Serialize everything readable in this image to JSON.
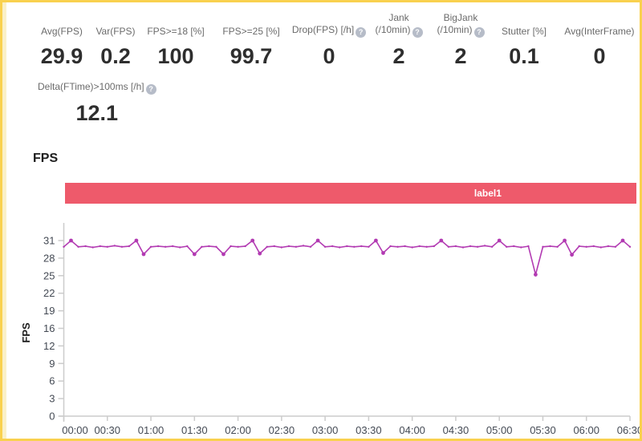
{
  "stats": {
    "row1": [
      {
        "label": "Avg(FPS)",
        "value": "29.9",
        "help": false
      },
      {
        "label": "Var(FPS)",
        "value": "0.2",
        "help": false
      },
      {
        "label": "FPS>=18 [%]",
        "value": "100",
        "help": false
      },
      {
        "label": "FPS>=25 [%]",
        "value": "99.7",
        "help": false
      },
      {
        "label": "Drop(FPS) [/h]",
        "value": "0",
        "help": true
      },
      {
        "label": "Jank",
        "label2": "(/10min)",
        "value": "2",
        "help": true
      },
      {
        "label": "BigJank",
        "label2": "(/10min)",
        "value": "2",
        "help": true
      },
      {
        "label": "Stutter [%]",
        "value": "0.1",
        "help": false
      },
      {
        "label": "Avg(InterFrame)",
        "value": "0",
        "help": false
      }
    ],
    "row2": [
      {
        "label": "Delta(FTime)>100ms [/h]",
        "value": "12.1",
        "help": true
      }
    ]
  },
  "section_title": "FPS",
  "banner": {
    "label": "label1",
    "color": "#ee5a6b"
  },
  "icons": {
    "help_glyph": "?"
  },
  "colors": {
    "border_yellow": "#f9d14e",
    "banner": "#ee5a6b",
    "line": "#b23ab2",
    "axis": "#cccccc",
    "tick_label": "#444a54",
    "stat_label": "#6b6b6b",
    "stat_value": "#2e2e2e",
    "help_icon_bg": "#b6bcc8"
  },
  "chart_data": {
    "type": "line",
    "title": "FPS",
    "ylabel": "FPS",
    "xlabel": "",
    "grid": false,
    "legend_position": "none",
    "ylim": [
      0,
      34.1
    ],
    "xlim_seconds": [
      0,
      390
    ],
    "x_tick_labels": [
      "00:00",
      "00:30",
      "01:00",
      "01:30",
      "02:00",
      "02:30",
      "03:00",
      "03:30",
      "04:00",
      "04:30",
      "05:00",
      "05:30",
      "06:00",
      "06:30"
    ],
    "y_tick_labels": [
      "0",
      "3",
      "6",
      "9",
      "12",
      "16",
      "19",
      "22",
      "25",
      "28",
      "31"
    ],
    "y_tick_step_value": 3.1,
    "series": [
      {
        "name": "label1",
        "color": "#b23ab2",
        "x_start_seconds": 0,
        "x_step_seconds": 5,
        "values": [
          29.9,
          31,
          29.9,
          30,
          29.8,
          30,
          29.9,
          30.1,
          29.9,
          30,
          31,
          28.6,
          29.9,
          30,
          29.9,
          30,
          29.8,
          30,
          28.6,
          29.9,
          30,
          29.9,
          28.6,
          30,
          29.9,
          30,
          31,
          28.7,
          29.9,
          30,
          29.8,
          30,
          29.9,
          30.1,
          29.9,
          31,
          29.9,
          30,
          29.8,
          30,
          29.9,
          30,
          29.9,
          31,
          28.8,
          30,
          29.9,
          30,
          29.8,
          30,
          29.9,
          30,
          31,
          29.9,
          30,
          29.8,
          30,
          29.9,
          30.1,
          29.9,
          31,
          29.9,
          30,
          29.8,
          30,
          25,
          29.9,
          30,
          29.9,
          31,
          28.5,
          30,
          29.9,
          30,
          29.8,
          30,
          29.9,
          31,
          29.9
        ]
      }
    ]
  }
}
